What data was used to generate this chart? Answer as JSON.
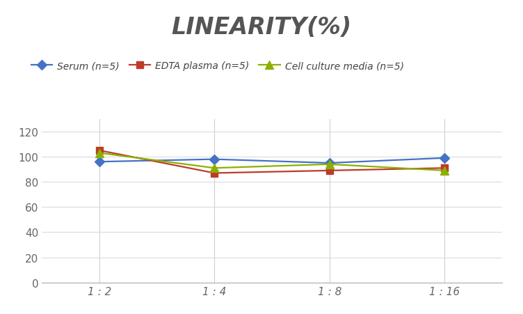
{
  "title": "LINEARITY(%)",
  "title_fontsize": 24,
  "title_style": "italic",
  "title_weight": "bold",
  "title_color": "#555555",
  "x_labels": [
    "1 : 2",
    "1 : 4",
    "1 : 8",
    "1 : 16"
  ],
  "x_positions": [
    0,
    1,
    2,
    3
  ],
  "series": [
    {
      "label": "Serum (n=5)",
      "values": [
        96,
        98,
        95,
        99
      ],
      "color": "#4472C4",
      "marker": "D",
      "marker_size": 7,
      "linewidth": 1.6
    },
    {
      "label": "EDTA plasma (n=5)",
      "values": [
        105,
        87,
        89,
        91
      ],
      "color": "#BE3A2A",
      "marker": "s",
      "marker_size": 7,
      "linewidth": 1.6
    },
    {
      "label": "Cell culture media (n=5)",
      "values": [
        103,
        91,
        94,
        89
      ],
      "color": "#8DB000",
      "marker": "^",
      "marker_size": 8,
      "linewidth": 1.6
    }
  ],
  "ylim": [
    0,
    130
  ],
  "yticks": [
    0,
    20,
    40,
    60,
    80,
    100,
    120
  ],
  "background_color": "#ffffff",
  "grid_color": "#d0d0d0",
  "legend_fontsize": 10,
  "axis_tick_color": "#666666",
  "tick_fontsize": 11,
  "bottom_spine_color": "#aaaaaa"
}
